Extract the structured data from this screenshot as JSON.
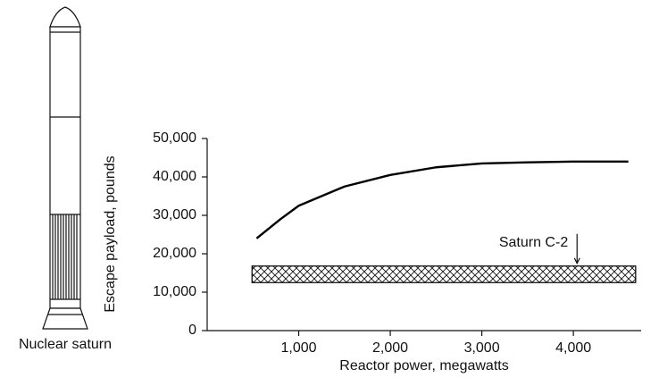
{
  "chart_data": {
    "type": "line",
    "x_label": "Reactor power, megawatts",
    "y_label": "Escape payload, pounds",
    "x": [
      540,
      800,
      1000,
      1500,
      2000,
      2500,
      3000,
      3500,
      4000,
      4600
    ],
    "series": [
      {
        "color": "#000000",
        "values": [
          24000,
          29000,
          32500,
          37500,
          40500,
          42500,
          43500,
          43800,
          44000,
          44000
        ]
      }
    ],
    "band": {
      "x": [
        490,
        4680
      ],
      "y": [
        12500,
        16800
      ],
      "color": "#000000"
    },
    "annotation": {
      "text": "Saturn C-2",
      "x": 4040
    },
    "figure_label": "Nuclear saturn",
    "xlim": [
      0,
      4740
    ],
    "ylim": [
      0,
      50000
    ],
    "xticks": [
      {
        "value": 1000,
        "label": "1,000"
      },
      {
        "value": 2000,
        "label": "2,000"
      },
      {
        "value": 3000,
        "label": "3,000"
      },
      {
        "value": 4000,
        "label": "4,000"
      }
    ],
    "yticks": [
      0,
      {
        "value": 10000,
        "label": "10,000"
      },
      {
        "value": 20000,
        "label": "20,000"
      },
      {
        "value": 30000,
        "label": "30,000"
      },
      {
        "value": 40000,
        "label": "40,000"
      },
      {
        "value": 50000,
        "label": "50,000"
      }
    ]
  }
}
